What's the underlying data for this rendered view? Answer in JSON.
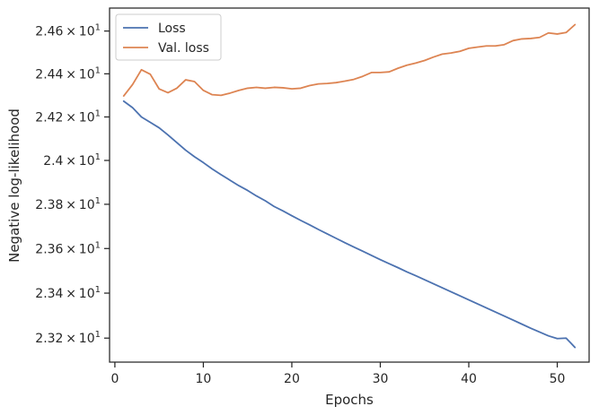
{
  "chart_data": {
    "type": "line",
    "title": "",
    "xlabel": "Epochs",
    "ylabel": "Negative log-likelihood",
    "xlim": [
      -0.6,
      53.6
    ],
    "ylim": [
      23.094,
      24.708
    ],
    "y_scale": "log",
    "grid": false,
    "legend_position": "top-left",
    "x_ticks": [
      0,
      10,
      20,
      30,
      40,
      50
    ],
    "y_ticks": [
      {
        "value": 23.2,
        "mantissa": "2.32",
        "base": "10",
        "exponent": "1"
      },
      {
        "value": 23.4,
        "mantissa": "2.34",
        "base": "10",
        "exponent": "1"
      },
      {
        "value": 23.6,
        "mantissa": "2.36",
        "base": "10",
        "exponent": "1"
      },
      {
        "value": 23.8,
        "mantissa": "2.38",
        "base": "10",
        "exponent": "1"
      },
      {
        "value": 24.0,
        "mantissa": "2.4",
        "base": "10",
        "exponent": "1"
      },
      {
        "value": 24.2,
        "mantissa": "2.42",
        "base": "10",
        "exponent": "1"
      },
      {
        "value": 24.4,
        "mantissa": "2.44",
        "base": "10",
        "exponent": "1"
      },
      {
        "value": 24.6,
        "mantissa": "2.46",
        "base": "10",
        "exponent": "1"
      }
    ],
    "x": [
      1,
      2,
      3,
      4,
      5,
      6,
      7,
      8,
      9,
      10,
      11,
      12,
      13,
      14,
      15,
      16,
      17,
      18,
      19,
      20,
      21,
      22,
      23,
      24,
      25,
      26,
      27,
      28,
      29,
      30,
      31,
      32,
      33,
      34,
      35,
      36,
      37,
      38,
      39,
      40,
      41,
      42,
      43,
      44,
      45,
      46,
      47,
      48,
      49,
      50,
      51,
      52
    ],
    "series": [
      {
        "name": "Loss",
        "color": "#4c72b0",
        "values": [
          24.273,
          24.243,
          24.2,
          24.175,
          24.15,
          24.117,
          24.082,
          24.047,
          24.017,
          23.99,
          23.961,
          23.935,
          23.91,
          23.885,
          23.863,
          23.838,
          23.816,
          23.79,
          23.77,
          23.748,
          23.727,
          23.707,
          23.686,
          23.666,
          23.646,
          23.626,
          23.607,
          23.588,
          23.569,
          23.55,
          23.532,
          23.514,
          23.495,
          23.478,
          23.46,
          23.442,
          23.424,
          23.406,
          23.388,
          23.37,
          23.352,
          23.334,
          23.316,
          23.298,
          23.28,
          23.262,
          23.244,
          23.227,
          23.21,
          23.198,
          23.2,
          23.159
        ]
      },
      {
        "name": "Val. loss",
        "color": "#dd8452",
        "values": [
          24.297,
          24.35,
          24.419,
          24.398,
          24.33,
          24.312,
          24.333,
          24.372,
          24.364,
          24.323,
          24.303,
          24.3,
          24.31,
          24.323,
          24.333,
          24.337,
          24.333,
          24.337,
          24.335,
          24.33,
          24.333,
          24.345,
          24.353,
          24.355,
          24.359,
          24.366,
          24.374,
          24.388,
          24.406,
          24.406,
          24.409,
          24.426,
          24.44,
          24.45,
          24.462,
          24.478,
          24.492,
          24.497,
          24.505,
          24.519,
          24.525,
          24.53,
          24.53,
          24.536,
          24.555,
          24.563,
          24.565,
          24.57,
          24.591,
          24.586,
          24.593,
          24.63
        ]
      }
    ]
  }
}
